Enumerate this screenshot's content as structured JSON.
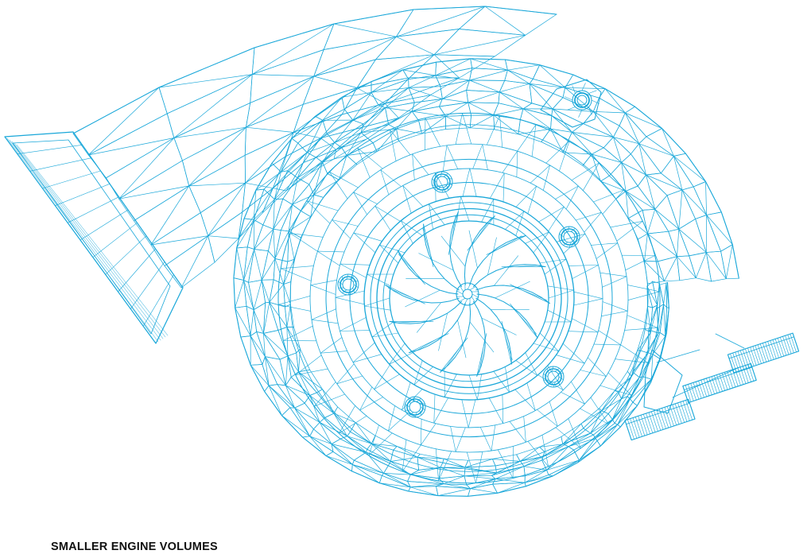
{
  "caption": "SMALLER ENGINE VOLUMES",
  "illustration": {
    "subject": "turbocharger-wireframe",
    "line_color": "#19a7d9"
  }
}
